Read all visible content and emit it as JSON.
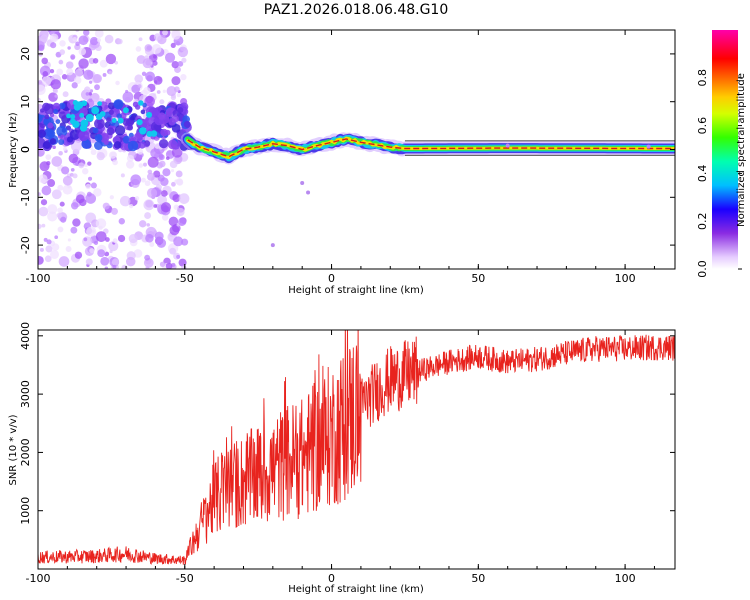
{
  "title": "PAZ1.2026.018.06.48.G10",
  "colors": {
    "snr_line": "#e8231e",
    "trace_center": "#d7191c",
    "background": "#ffffff"
  },
  "chart_data": [
    {
      "type": "heatmap",
      "title": "PAZ1.2026.018.06.48.G10",
      "xlabel": "Height of straight line (km)",
      "ylabel": "Frequency (Hz)",
      "xlim": [
        -100,
        117
      ],
      "ylim": [
        -25,
        25
      ],
      "xticks": [
        "-100",
        "-50",
        "0",
        "50",
        "100"
      ],
      "yticks": [
        "-20",
        "-10",
        "0",
        "10",
        "20"
      ],
      "colorbar": {
        "label": "Normalized spectral amplitude",
        "range": [
          0,
          1
        ],
        "ticks": [
          "0.0",
          "0.2",
          "0.4",
          "0.6",
          "0.8"
        ],
        "colormap": "purple-blue-cyan-green-yellow-orange-red-magenta"
      },
      "description_points": {
        "center_frequency_track": [
          [
            -49,
            2
          ],
          [
            -45,
            0.5
          ],
          [
            -40,
            -0.5
          ],
          [
            -35,
            -1.5
          ],
          [
            -30,
            0
          ],
          [
            -25,
            0.5
          ],
          [
            -20,
            1.2
          ],
          [
            -15,
            0.8
          ],
          [
            -10,
            0
          ],
          [
            -5,
            0.8
          ],
          [
            0,
            1.5
          ],
          [
            5,
            2.2
          ],
          [
            10,
            1.5
          ],
          [
            15,
            1
          ],
          [
            20,
            0.5
          ],
          [
            25,
            0.2
          ],
          [
            60,
            0.3
          ],
          [
            117,
            0.2
          ]
        ],
        "noisy_region_x": [
          -100,
          -50
        ],
        "noisy_cluster_center_hz": 5
      }
    },
    {
      "type": "line",
      "title": "",
      "xlabel": "Height of straight line (km)",
      "ylabel": "SNR (10 * v/v)",
      "xlim": [
        -100,
        117
      ],
      "ylim": [
        0,
        4100
      ],
      "xticks": [
        "-100",
        "-50",
        "0",
        "50",
        "100"
      ],
      "yticks": [
        "1000",
        "2000",
        "3000",
        "4000"
      ],
      "series": [
        {
          "name": "SNR",
          "envelope_x": [
            -100,
            -80,
            -70,
            -60,
            -50,
            -45,
            -40,
            -35,
            -30,
            -25,
            -20,
            -15,
            -10,
            -5,
            0,
            5,
            10,
            15,
            20,
            30,
            40,
            50,
            60,
            70,
            80,
            90,
            100,
            110,
            117
          ],
          "envelope_y": [
            200,
            220,
            260,
            180,
            150,
            700,
            1200,
            1400,
            1500,
            1600,
            1700,
            1850,
            1900,
            2100,
            2300,
            2500,
            2800,
            3050,
            3250,
            3400,
            3550,
            3650,
            3550,
            3600,
            3700,
            3780,
            3780,
            3800,
            3800
          ]
        }
      ]
    }
  ]
}
